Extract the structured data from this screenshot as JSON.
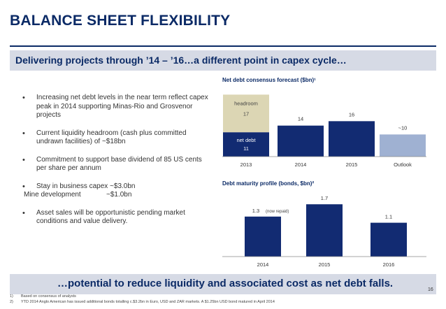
{
  "header": {
    "title": "BALANCE SHEET FLEXIBILITY",
    "subtitle": "Delivering projects through ’14 – ’16…a different point in capex cycle…"
  },
  "bullets": [
    {
      "text": "Increasing net debt levels in the near term reflect capex peak in 2014 supporting Minas-Rio and Grosvenor projects"
    },
    {
      "text": "Current liquidity headroom (cash plus committed undrawn facilities) of ~$18bn"
    },
    {
      "text": "Commitment to support base dividend of 85 US cents per share per annum"
    },
    {
      "text": "Stay in business capex ~$3.0bn",
      "sub_label": "Mine development",
      "sub_value": "~$1.0bn"
    },
    {
      "text": "Asset sales will be opportunistic pending market conditions and value delivery."
    }
  ],
  "colors": {
    "navy": "#0b2a66",
    "bar_navy": "#122b72",
    "headroom": "#dcd6b4",
    "outlook": "#9fb1d2",
    "band": "#d6dae5"
  },
  "chart_data": [
    {
      "type": "bar",
      "title": "Net debt consensus forecast ($bn)¹",
      "categories": [
        "2013",
        "2014",
        "2015",
        "Outlook"
      ],
      "series": [
        {
          "name": "net debt",
          "values": [
            11,
            14,
            16,
            10
          ]
        },
        {
          "name": "headroom",
          "values": [
            17,
            null,
            null,
            null
          ]
        }
      ],
      "data_labels": [
        "11",
        "14",
        "16",
        "~10"
      ],
      "headroom_label": "17",
      "ylim": [
        0,
        30
      ],
      "grid": false
    },
    {
      "type": "bar",
      "title": "Debt maturity profile (bonds, $bn)²",
      "categories": [
        "2014",
        "2015",
        "2016"
      ],
      "values": [
        1.3,
        1.7,
        1.1
      ],
      "data_labels": [
        "1.3",
        "1.7",
        "1.1"
      ],
      "annotation": "(now repaid)",
      "ylim": [
        0,
        2.0
      ],
      "grid": false
    }
  ],
  "footer": {
    "conclusion": "…potential to reduce liquidity and associated cost as net debt falls.",
    "page_number": "16",
    "footnotes": [
      {
        "num": "1)",
        "text": "Based on consensus of analysts"
      },
      {
        "num": "2)",
        "text": "YTD 2014 Anglo American has issued additional bonds totalling c.$3.2bn in Euro, USD and ZAR markets. A $1.25bn USD bond matured in April 2014"
      }
    ]
  }
}
